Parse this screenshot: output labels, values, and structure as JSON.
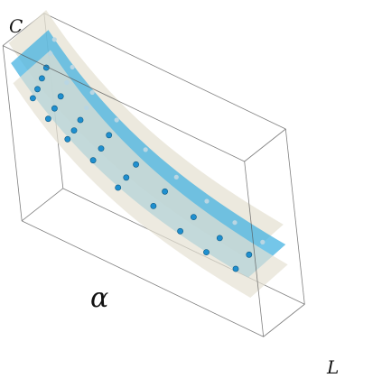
{
  "chart_data": {
    "type": "scatter",
    "title": "",
    "axis_labels": {
      "x": "L",
      "y": "α",
      "z": "C"
    },
    "grid": false,
    "colors": {
      "points": "#1f8fcf",
      "points_far": "#b9d6e3",
      "fitted_surface": "#3fb0e0",
      "upper_surface": "#e6e1d3",
      "lower_surface": "#e6e1d3",
      "box": "#555555"
    },
    "series": [
      {
        "kind": "points",
        "points": [
          {
            "L": 0.05,
            "alpha": 0.1,
            "C": 0.92
          },
          {
            "L": 0.05,
            "alpha": 0.25,
            "C": 0.86
          },
          {
            "L": 0.05,
            "alpha": 0.4,
            "C": 0.8
          },
          {
            "L": 0.05,
            "alpha": 0.55,
            "C": 0.76
          },
          {
            "L": 0.05,
            "alpha": 0.7,
            "C": 0.72
          },
          {
            "L": 0.05,
            "alpha": 0.85,
            "C": 0.69
          },
          {
            "L": 0.12,
            "alpha": 0.1,
            "C": 0.8
          },
          {
            "L": 0.12,
            "alpha": 0.3,
            "C": 0.74
          },
          {
            "L": 0.12,
            "alpha": 0.5,
            "C": 0.69
          },
          {
            "L": 0.12,
            "alpha": 0.7,
            "C": 0.65
          },
          {
            "L": 0.12,
            "alpha": 0.9,
            "C": 0.62
          },
          {
            "L": 0.2,
            "alpha": 0.1,
            "C": 0.7
          },
          {
            "L": 0.2,
            "alpha": 0.3,
            "C": 0.64
          },
          {
            "L": 0.2,
            "alpha": 0.5,
            "C": 0.6
          },
          {
            "L": 0.2,
            "alpha": 0.7,
            "C": 0.57
          },
          {
            "L": 0.2,
            "alpha": 0.9,
            "C": 0.55
          },
          {
            "L": 0.3,
            "alpha": 0.1,
            "C": 0.6
          },
          {
            "L": 0.3,
            "alpha": 0.35,
            "C": 0.55
          },
          {
            "L": 0.3,
            "alpha": 0.6,
            "C": 0.51
          },
          {
            "L": 0.3,
            "alpha": 0.85,
            "C": 0.48
          },
          {
            "L": 0.42,
            "alpha": 0.1,
            "C": 0.5
          },
          {
            "L": 0.42,
            "alpha": 0.4,
            "C": 0.46
          },
          {
            "L": 0.42,
            "alpha": 0.7,
            "C": 0.43
          },
          {
            "L": 0.42,
            "alpha": 0.95,
            "C": 0.41
          },
          {
            "L": 0.55,
            "alpha": 0.1,
            "C": 0.42
          },
          {
            "L": 0.55,
            "alpha": 0.45,
            "C": 0.39
          },
          {
            "L": 0.55,
            "alpha": 0.8,
            "C": 0.36
          },
          {
            "L": 0.68,
            "alpha": 0.1,
            "C": 0.36
          },
          {
            "L": 0.68,
            "alpha": 0.5,
            "C": 0.33
          },
          {
            "L": 0.68,
            "alpha": 0.9,
            "C": 0.31
          },
          {
            "L": 0.8,
            "alpha": 0.1,
            "C": 0.31
          },
          {
            "L": 0.8,
            "alpha": 0.55,
            "C": 0.29
          },
          {
            "L": 0.8,
            "alpha": 0.95,
            "C": 0.27
          },
          {
            "L": 0.92,
            "alpha": 0.1,
            "C": 0.27
          },
          {
            "L": 0.92,
            "alpha": 0.5,
            "C": 0.26
          },
          {
            "L": 0.92,
            "alpha": 0.9,
            "C": 0.24
          }
        ]
      }
    ]
  }
}
